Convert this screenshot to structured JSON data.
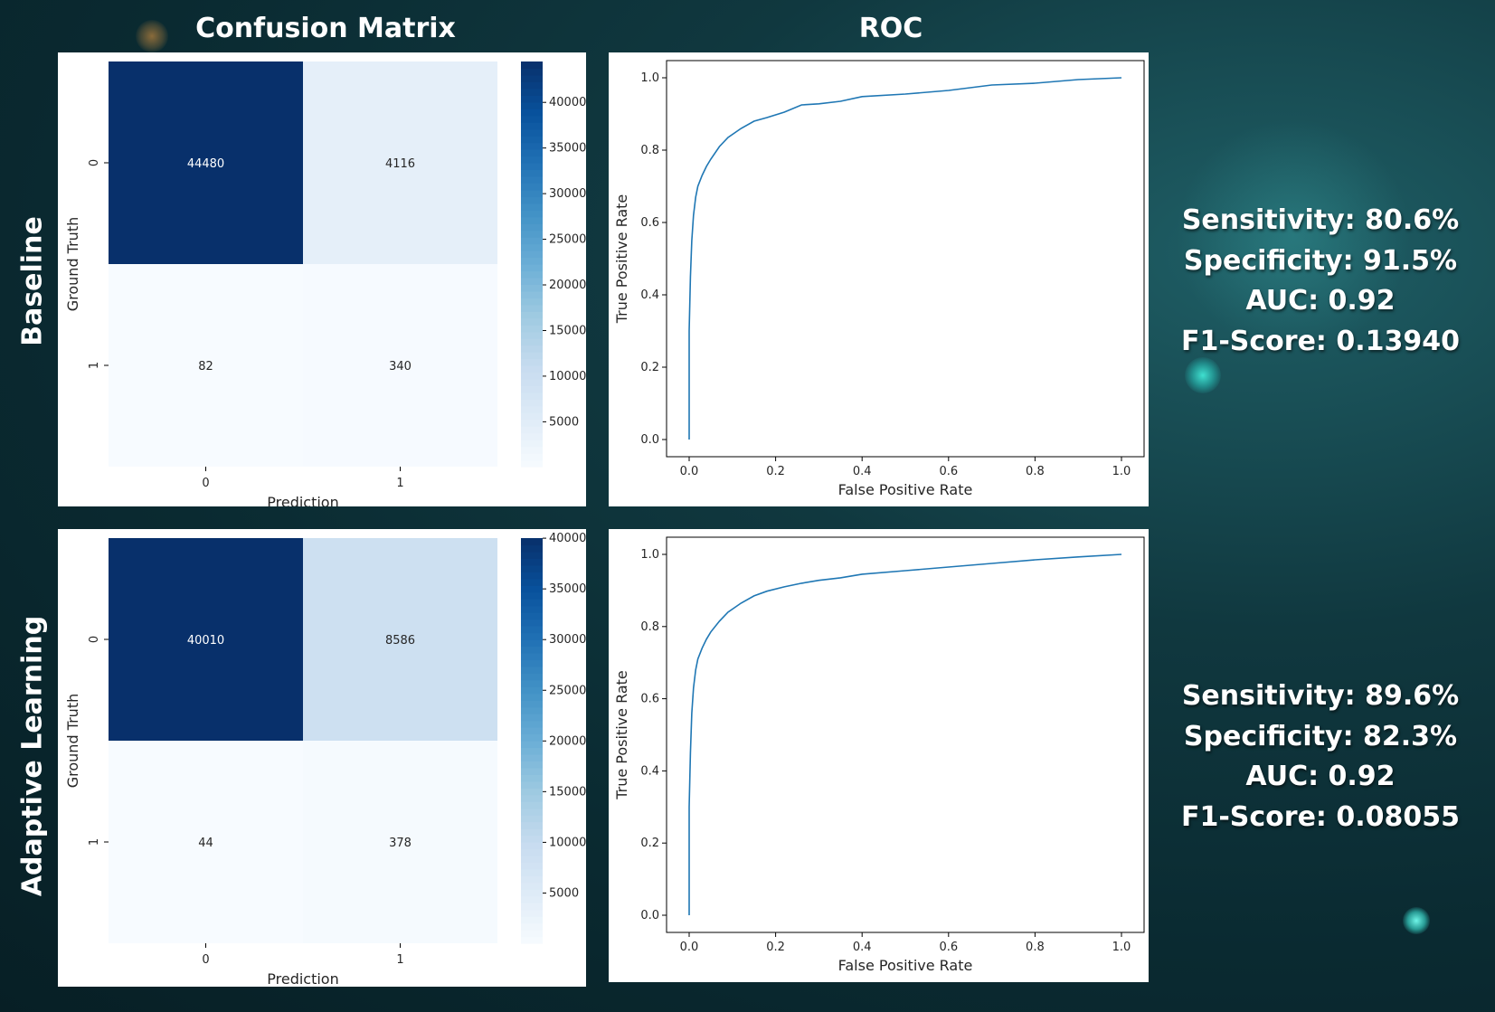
{
  "column_titles": {
    "confusion": "Confusion Matrix",
    "roc": "ROC"
  },
  "row_labels": {
    "baseline": "Baseline",
    "adaptive": "Adaptive Learning"
  },
  "metrics": {
    "baseline": [
      "Sensitivity: 80.6%",
      "Specificity: 91.5%",
      "AUC: 0.92",
      "F1-Score: 0.13940"
    ],
    "adaptive": [
      "Sensitivity: 89.6%",
      "Specificity: 82.3%",
      "AUC: 0.92",
      "F1-Score: 0.08055"
    ]
  },
  "chart_data": [
    {
      "type": "heatmap",
      "row": "Baseline",
      "xlabel": "Prediction",
      "ylabel": "Ground Truth",
      "x_categories": [
        "0",
        "1"
      ],
      "y_categories": [
        "0",
        "1"
      ],
      "values": [
        [
          44480,
          4116
        ],
        [
          82,
          340
        ]
      ],
      "colormap": "Blues",
      "colorbar_ticks": [
        5000,
        10000,
        15000,
        20000,
        25000,
        30000,
        35000,
        40000
      ],
      "colorbar_range": [
        82,
        44480
      ]
    },
    {
      "type": "line",
      "row": "Baseline",
      "xlabel": "False Positive Rate",
      "ylabel": "True Positive Rate",
      "xlim": [
        0,
        1
      ],
      "ylim": [
        0,
        1
      ],
      "x_ticks": [
        "0.0",
        "0.2",
        "0.4",
        "0.6",
        "0.8",
        "1.0"
      ],
      "y_ticks": [
        "0.0",
        "0.2",
        "0.4",
        "0.6",
        "0.8",
        "1.0"
      ],
      "line_color": "#1f77b4",
      "x": [
        0,
        0.0,
        0.003,
        0.006,
        0.01,
        0.015,
        0.02,
        0.03,
        0.04,
        0.05,
        0.07,
        0.09,
        0.12,
        0.15,
        0.18,
        0.22,
        0.26,
        0.3,
        0.35,
        0.4,
        0.5,
        0.6,
        0.7,
        0.8,
        0.9,
        1.0
      ],
      "y": [
        0,
        0.3,
        0.45,
        0.55,
        0.62,
        0.67,
        0.7,
        0.73,
        0.755,
        0.775,
        0.81,
        0.835,
        0.86,
        0.88,
        0.89,
        0.905,
        0.925,
        0.928,
        0.935,
        0.948,
        0.955,
        0.965,
        0.98,
        0.985,
        0.995,
        1.0
      ]
    },
    {
      "type": "heatmap",
      "row": "Adaptive Learning",
      "xlabel": "Prediction",
      "ylabel": "Ground Truth",
      "x_categories": [
        "0",
        "1"
      ],
      "y_categories": [
        "0",
        "1"
      ],
      "values": [
        [
          40010,
          8586
        ],
        [
          44,
          378
        ]
      ],
      "colormap": "Blues",
      "colorbar_ticks": [
        5000,
        10000,
        15000,
        20000,
        25000,
        30000,
        35000,
        40000
      ],
      "colorbar_range": [
        44,
        40010
      ]
    },
    {
      "type": "line",
      "row": "Adaptive Learning",
      "xlabel": "False Positive Rate",
      "ylabel": "True Positive Rate",
      "xlim": [
        0,
        1
      ],
      "ylim": [
        0,
        1
      ],
      "x_ticks": [
        "0.0",
        "0.2",
        "0.4",
        "0.6",
        "0.8",
        "1.0"
      ],
      "y_ticks": [
        "0.0",
        "0.2",
        "0.4",
        "0.6",
        "0.8",
        "1.0"
      ],
      "line_color": "#1f77b4",
      "x": [
        0,
        0.0,
        0.003,
        0.006,
        0.01,
        0.015,
        0.02,
        0.03,
        0.04,
        0.05,
        0.07,
        0.09,
        0.12,
        0.15,
        0.18,
        0.22,
        0.26,
        0.3,
        0.35,
        0.4,
        0.5,
        0.6,
        0.7,
        0.8,
        0.9,
        1.0
      ],
      "y": [
        0,
        0.3,
        0.45,
        0.56,
        0.63,
        0.68,
        0.71,
        0.74,
        0.765,
        0.785,
        0.815,
        0.84,
        0.865,
        0.885,
        0.898,
        0.91,
        0.92,
        0.928,
        0.935,
        0.945,
        0.955,
        0.965,
        0.975,
        0.985,
        0.993,
        1.0
      ]
    }
  ]
}
